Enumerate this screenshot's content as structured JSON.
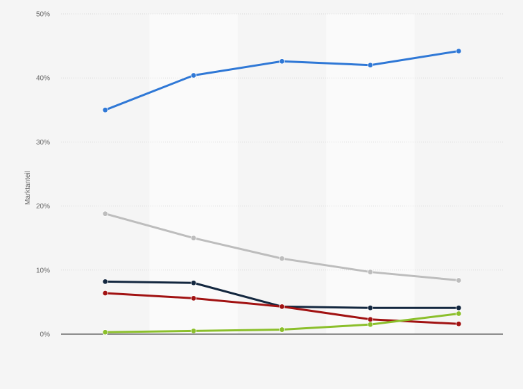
{
  "chart_data": {
    "type": "line",
    "xlabel": "",
    "ylabel": "Marktanteil",
    "x": [
      1,
      2,
      3,
      4,
      5
    ],
    "ylim": [
      0,
      50
    ],
    "yticks": [
      {
        "value": 0,
        "label": "0%"
      },
      {
        "value": 10,
        "label": "10%"
      },
      {
        "value": 20,
        "label": "20%"
      },
      {
        "value": 30,
        "label": "30%"
      },
      {
        "value": 40,
        "label": "40%"
      },
      {
        "value": 50,
        "label": "50%"
      }
    ],
    "grid": true,
    "legend": "none",
    "series": [
      {
        "color": "#2f78d6",
        "values": [
          35.0,
          40.4,
          42.6,
          42.0,
          44.2
        ]
      },
      {
        "color": "#bdbdbd",
        "values": [
          18.8,
          15.0,
          11.8,
          9.7,
          8.4
        ]
      },
      {
        "color": "#13273f",
        "values": [
          8.2,
          8.0,
          4.3,
          4.1,
          4.1
        ]
      },
      {
        "color": "#a11212",
        "values": [
          6.4,
          5.6,
          4.3,
          2.3,
          1.6
        ]
      },
      {
        "color": "#8bbf2b",
        "values": [
          0.3,
          0.5,
          0.7,
          1.5,
          3.2
        ]
      }
    ]
  }
}
